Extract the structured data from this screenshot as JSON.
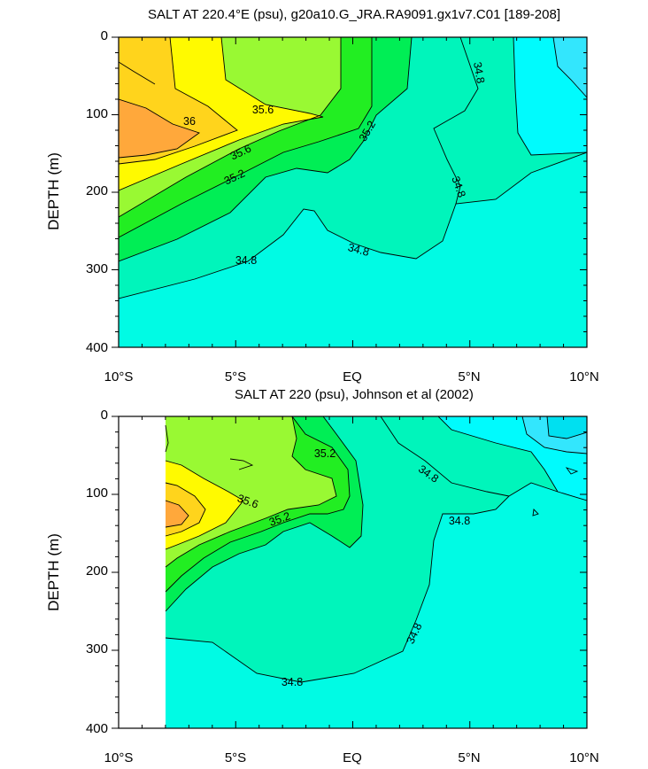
{
  "colors": {
    "lt34_8": "#00fbe4",
    "c34_8_35_0": "#00f5bb",
    "c35_0_35_2": "#00ee55",
    "c35_2_35_4": "#22ee22",
    "c35_4_35_6": "#99f933",
    "c35_6_35_8": "#fffa00",
    "c35_8_36_0": "#ffd41c",
    "gt36_0": "#ffa83b",
    "cyan_a": "#00fbfd",
    "cyan_b": "#33e6fd",
    "cyan_c": "#00e0f0"
  },
  "chart_data": [
    {
      "type": "contour",
      "title": "SALT AT 220.4°E (psu), g20a10.G_JRA.RA9091.gx1v7.C01 [189-208]",
      "ylabel": "DEPTH (m)",
      "xlabel": "",
      "xlim": [
        -10,
        10
      ],
      "ylim": [
        400,
        0
      ],
      "xticks": [
        "10°S",
        "5°S",
        "EQ",
        "5°N",
        "10°N"
      ],
      "yticks": [
        "0",
        "100",
        "200",
        "300",
        "400"
      ],
      "contour_labels": [
        "36",
        "35.6",
        "35.6",
        "35.2",
        "35.2",
        "34.8",
        "34.8",
        "34.8",
        "34.8"
      ]
    },
    {
      "type": "contour",
      "title": "SALT AT 220 (psu), Johnson et al (2002)",
      "ylabel": "DEPTH (m)",
      "xlabel": "",
      "xlim": [
        -10,
        10
      ],
      "ylim": [
        400,
        0
      ],
      "xticks": [
        "10°S",
        "5°S",
        "EQ",
        "5°N",
        "10°N"
      ],
      "yticks": [
        "0",
        "100",
        "200",
        "300",
        "400"
      ],
      "contour_labels": [
        "35.2",
        "35.6",
        "35.2",
        "34.8",
        "34.8",
        "34.8",
        "34.8"
      ]
    }
  ]
}
